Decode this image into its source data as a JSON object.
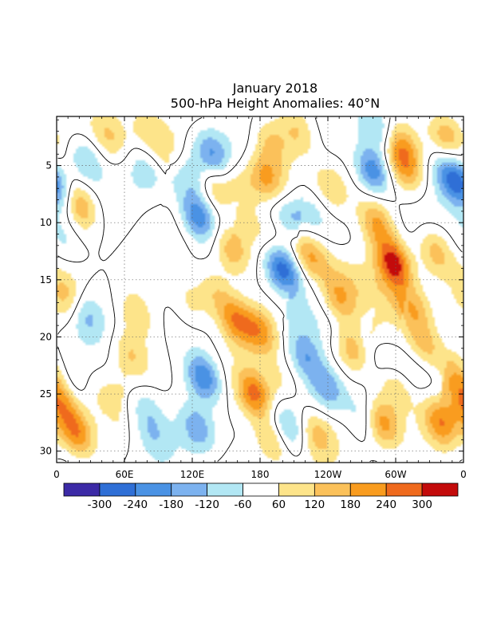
{
  "chart_data": {
    "type": "heatmap",
    "title": "January 2018",
    "subtitle": "500-hPa Height Anomalies: 40°N",
    "x_ticks": [
      "0",
      "60E",
      "120E",
      "180",
      "120W",
      "60W",
      "0"
    ],
    "x_range_deg_east": [
      0,
      360
    ],
    "y_ticks": [
      "5",
      "10",
      "15",
      "20",
      "25",
      "30"
    ],
    "y_range_days": [
      1,
      31
    ],
    "grid": "dotted",
    "colorbar": {
      "labels": [
        "-300",
        "-240",
        "-180",
        "-120",
        "-60",
        "60",
        "120",
        "180",
        "240",
        "300"
      ],
      "levels": [
        -300,
        -240,
        -180,
        -120,
        -60,
        60,
        120,
        180,
        240,
        300
      ],
      "colors": [
        "#3c2aa6",
        "#2f6fd6",
        "#4a92e4",
        "#7cb2ef",
        "#b2e7f4",
        "#ffffff",
        "#fde48a",
        "#fbc15a",
        "#f99c1f",
        "#ef6a1d",
        "#c30b0b"
      ]
    },
    "zero_contour": true,
    "anomaly_features": [
      {
        "lon": 20,
        "day": 8.5,
        "value": 200
      },
      {
        "lon": 25,
        "day": 4.5,
        "value": -140
      },
      {
        "lon": 5,
        "day": 11.5,
        "value": -80
      },
      {
        "lon": 4,
        "day": 7.5,
        "value": -120
      },
      {
        "lon": 10,
        "day": 16.5,
        "value": 140
      },
      {
        "lon": 25,
        "day": 18,
        "value": -130
      },
      {
        "lon": 15,
        "day": 24,
        "value": -100
      },
      {
        "lon": 18,
        "day": 28.5,
        "value": 220
      },
      {
        "lon": 5,
        "day": 26,
        "value": 170
      },
      {
        "lon": 48,
        "day": 2.5,
        "value": 120
      },
      {
        "lon": 70,
        "day": 18,
        "value": 110
      },
      {
        "lon": 65,
        "day": 21.5,
        "value": 110
      },
      {
        "lon": 78,
        "day": 26,
        "value": -100
      },
      {
        "lon": 80,
        "day": 2,
        "value": 100
      },
      {
        "lon": 80,
        "day": 5.5,
        "value": -80
      },
      {
        "lon": 100,
        "day": 4,
        "value": 100
      },
      {
        "lon": 115,
        "day": 5.5,
        "value": -70
      },
      {
        "lon": 125,
        "day": 9.5,
        "value": -230
      },
      {
        "lon": 140,
        "day": 7,
        "value": 170
      },
      {
        "lon": 120,
        "day": 17,
        "value": 100
      },
      {
        "lon": 137,
        "day": 4,
        "value": -170
      },
      {
        "lon": 162,
        "day": 7,
        "value": 120
      },
      {
        "lon": 155,
        "day": 12.5,
        "value": 160
      },
      {
        "lon": 140,
        "day": 16,
        "value": 120
      },
      {
        "lon": 158,
        "day": 18.5,
        "value": 210
      },
      {
        "lon": 180,
        "day": 19.5,
        "value": 180
      },
      {
        "lon": 130,
        "day": 23.5,
        "value": -240
      },
      {
        "lon": 125,
        "day": 28,
        "value": -140
      },
      {
        "lon": 85,
        "day": 28.5,
        "value": -90
      },
      {
        "lon": 175,
        "day": 25,
        "value": 260
      },
      {
        "lon": 190,
        "day": 29,
        "value": 150
      },
      {
        "lon": 200,
        "day": 14,
        "value": -270
      },
      {
        "lon": 205,
        "day": 9.5,
        "value": -100
      },
      {
        "lon": 185,
        "day": 6,
        "value": 180
      },
      {
        "lon": 190,
        "day": 3,
        "value": 130
      },
      {
        "lon": 225,
        "day": 13,
        "value": 170
      },
      {
        "lon": 220,
        "day": 21.5,
        "value": -160
      },
      {
        "lon": 240,
        "day": 24.5,
        "value": -160
      },
      {
        "lon": 200,
        "day": 24,
        "value": 80
      },
      {
        "lon": 205,
        "day": 28,
        "value": -120
      },
      {
        "lon": 230,
        "day": 28.5,
        "value": 140
      },
      {
        "lon": 213,
        "day": 2,
        "value": 120
      },
      {
        "lon": 243,
        "day": 7,
        "value": 120
      },
      {
        "lon": 225,
        "day": 9,
        "value": -80
      },
      {
        "lon": 250,
        "day": 16.5,
        "value": 160
      },
      {
        "lon": 262,
        "day": 21,
        "value": 180
      },
      {
        "lon": 288,
        "day": 27.5,
        "value": 230
      },
      {
        "lon": 272,
        "day": 27,
        "value": -100
      },
      {
        "lon": 300,
        "day": 24.5,
        "value": 140
      },
      {
        "lon": 298,
        "day": 13.5,
        "value": 330
      },
      {
        "lon": 283,
        "day": 10,
        "value": 180
      },
      {
        "lon": 280,
        "day": 5.5,
        "value": -250
      },
      {
        "lon": 285,
        "day": 2,
        "value": -140
      },
      {
        "lon": 305,
        "day": 3.5,
        "value": 180
      },
      {
        "lon": 310,
        "day": 5.5,
        "value": 130
      },
      {
        "lon": 315,
        "day": 17.5,
        "value": 170
      },
      {
        "lon": 325,
        "day": 20.5,
        "value": 120
      },
      {
        "lon": 335,
        "day": 12.5,
        "value": 150
      },
      {
        "lon": 350,
        "day": 6,
        "value": -230
      },
      {
        "lon": 345,
        "day": 2.5,
        "value": 160
      },
      {
        "lon": 340,
        "day": 27.5,
        "value": 200
      },
      {
        "lon": 355,
        "day": 24,
        "value": 100
      }
    ],
    "diagonal_bands": [
      {
        "lon": 110,
        "day": 6,
        "dir": [
          0.7,
          1
        ],
        "len": 18,
        "width": 4,
        "value": -110
      },
      {
        "lon": 170,
        "day": 10,
        "dir": [
          0.55,
          1
        ],
        "len": 24,
        "width": 4,
        "value": 130
      },
      {
        "lon": 215,
        "day": 18,
        "dir": [
          0.6,
          1
        ],
        "len": 22,
        "width": 4,
        "value": -130
      },
      {
        "lon": 290,
        "day": 20,
        "dir": [
          0.6,
          1
        ],
        "len": 22,
        "width": 4,
        "value": 130
      }
    ]
  }
}
